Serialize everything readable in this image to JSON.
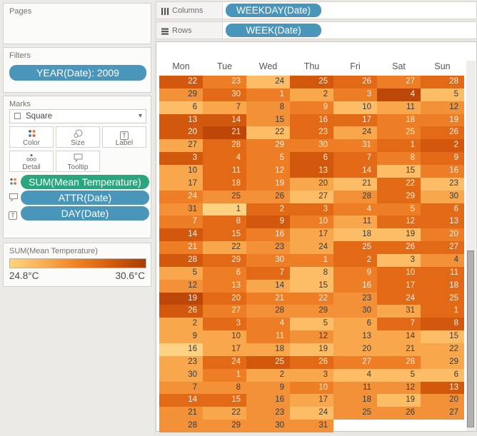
{
  "left_panel": {
    "pages_label": "Pages",
    "filters_label": "Filters",
    "filter_pill": "YEAR(Date): 2009",
    "marks": {
      "label": "Marks",
      "mark_type": "Square",
      "dropdown_caret": "▾",
      "buttons": [
        {
          "label": "Color"
        },
        {
          "label": "Size"
        },
        {
          "label": "Label"
        },
        {
          "label": "Detail"
        },
        {
          "label": "Tooltip"
        }
      ],
      "pills": [
        {
          "label": "SUM(Mean Temperature)",
          "color": "#2ba57c",
          "icon": "color-dots-icon"
        },
        {
          "label": "ATTR(Date)",
          "color": "#4a96ba",
          "icon": "tooltip-icon"
        },
        {
          "label": "DAY(Date)",
          "color": "#4a96ba",
          "icon": "label-t-icon"
        }
      ]
    },
    "legend": {
      "title": "SUM(Mean Temperature)"
    }
  },
  "shelves": {
    "columns_label": "Columns",
    "columns_pill": "WEEKDAY(Date)",
    "rows_label": "Rows",
    "rows_pill": "WEEK(Date)"
  },
  "chart_data": {
    "type": "heatmap",
    "columns": [
      "Mon",
      "Tue",
      "Wed",
      "Thu",
      "Fri",
      "Sat",
      "Sun"
    ],
    "color_scale": {
      "min_label": "24.8°C",
      "max_label": "30.6°C",
      "palette": [
        "#fdd283",
        "#fcbd66",
        "#f9a74d",
        "#f29138",
        "#ee7e26",
        "#e26a16",
        "#d2580e",
        "#bc4708"
      ],
      "dark_text": "#3a3a3a",
      "light_text": "#fbeedd"
    },
    "rows": [
      [
        [
          22,
          6
        ],
        [
          23,
          4
        ],
        [
          24,
          1
        ],
        [
          25,
          6
        ],
        [
          26,
          5
        ],
        [
          27,
          4
        ],
        [
          28,
          5
        ]
      ],
      [
        [
          29,
          3
        ],
        [
          30,
          5
        ],
        [
          1,
          4
        ],
        [
          2,
          2
        ],
        [
          3,
          4
        ],
        [
          4,
          7
        ],
        [
          5,
          1
        ]
      ],
      [
        [
          6,
          1
        ],
        [
          7,
          2
        ],
        [
          8,
          3
        ],
        [
          9,
          4
        ],
        [
          10,
          1
        ],
        [
          11,
          2
        ],
        [
          12,
          3
        ]
      ],
      [
        [
          13,
          6
        ],
        [
          14,
          6
        ],
        [
          15,
          3
        ],
        [
          16,
          5
        ],
        [
          17,
          5
        ],
        [
          18,
          4
        ],
        [
          19,
          4
        ]
      ],
      [
        [
          20,
          6
        ],
        [
          21,
          7
        ],
        [
          22,
          1
        ],
        [
          23,
          5
        ],
        [
          24,
          2
        ],
        [
          25,
          4
        ],
        [
          26,
          5
        ]
      ],
      [
        [
          27,
          2
        ],
        [
          28,
          5
        ],
        [
          29,
          4
        ],
        [
          30,
          4
        ],
        [
          31,
          4
        ],
        [
          1,
          5
        ],
        [
          2,
          6
        ]
      ],
      [
        [
          3,
          6
        ],
        [
          4,
          5
        ],
        [
          5,
          4
        ],
        [
          6,
          6
        ],
        [
          7,
          5
        ],
        [
          8,
          4
        ],
        [
          9,
          5
        ]
      ],
      [
        [
          10,
          2
        ],
        [
          11,
          5
        ],
        [
          12,
          4
        ],
        [
          13,
          6
        ],
        [
          14,
          5
        ],
        [
          15,
          1
        ],
        [
          16,
          4
        ]
      ],
      [
        [
          17,
          2
        ],
        [
          18,
          5
        ],
        [
          19,
          4
        ],
        [
          20,
          2
        ],
        [
          21,
          1
        ],
        [
          22,
          5
        ],
        [
          23,
          1
        ]
      ],
      [
        [
          24,
          4
        ],
        [
          25,
          3
        ],
        [
          26,
          3
        ],
        [
          27,
          1
        ],
        [
          28,
          3
        ],
        [
          29,
          5
        ],
        [
          30,
          2
        ]
      ],
      [
        [
          31,
          3
        ],
        [
          1,
          0
        ],
        [
          2,
          5
        ],
        [
          3,
          5
        ],
        [
          4,
          4
        ],
        [
          5,
          4
        ],
        [
          6,
          5
        ]
      ],
      [
        [
          7,
          4
        ],
        [
          8,
          5
        ],
        [
          9,
          6
        ],
        [
          10,
          4
        ],
        [
          11,
          2
        ],
        [
          12,
          5
        ],
        [
          13,
          5
        ]
      ],
      [
        [
          14,
          6
        ],
        [
          15,
          5
        ],
        [
          16,
          4
        ],
        [
          17,
          2
        ],
        [
          18,
          1
        ],
        [
          19,
          1
        ],
        [
          20,
          4
        ]
      ],
      [
        [
          21,
          4
        ],
        [
          22,
          2
        ],
        [
          23,
          3
        ],
        [
          24,
          2
        ],
        [
          25,
          5
        ],
        [
          26,
          5
        ],
        [
          27,
          5
        ]
      ],
      [
        [
          28,
          6
        ],
        [
          29,
          5
        ],
        [
          30,
          4
        ],
        [
          1,
          4
        ],
        [
          2,
          5
        ],
        [
          3,
          1
        ],
        [
          4,
          3
        ]
      ],
      [
        [
          5,
          2
        ],
        [
          6,
          4
        ],
        [
          7,
          5
        ],
        [
          8,
          1
        ],
        [
          9,
          4
        ],
        [
          10,
          5
        ],
        [
          11,
          5
        ]
      ],
      [
        [
          12,
          3
        ],
        [
          13,
          4
        ],
        [
          14,
          2
        ],
        [
          15,
          1
        ],
        [
          16,
          4
        ],
        [
          17,
          5
        ],
        [
          18,
          5
        ]
      ],
      [
        [
          19,
          7
        ],
        [
          20,
          5
        ],
        [
          21,
          4
        ],
        [
          22,
          4
        ],
        [
          23,
          3
        ],
        [
          24,
          5
        ],
        [
          25,
          5
        ]
      ],
      [
        [
          26,
          6
        ],
        [
          27,
          4
        ],
        [
          28,
          3
        ],
        [
          29,
          3
        ],
        [
          30,
          3
        ],
        [
          31,
          2
        ],
        [
          1,
          5
        ]
      ],
      [
        [
          2,
          2
        ],
        [
          3,
          5
        ],
        [
          4,
          4
        ],
        [
          5,
          1
        ],
        [
          6,
          2
        ],
        [
          7,
          5
        ],
        [
          8,
          6
        ]
      ],
      [
        [
          9,
          2
        ],
        [
          10,
          2
        ],
        [
          11,
          4
        ],
        [
          12,
          3
        ],
        [
          13,
          2
        ],
        [
          14,
          2
        ],
        [
          15,
          1
        ]
      ],
      [
        [
          16,
          0
        ],
        [
          17,
          2
        ],
        [
          18,
          2
        ],
        [
          19,
          1
        ],
        [
          20,
          2
        ],
        [
          21,
          2
        ],
        [
          22,
          2
        ]
      ],
      [
        [
          23,
          2
        ],
        [
          24,
          5
        ],
        [
          25,
          6
        ],
        [
          26,
          5
        ],
        [
          27,
          4
        ],
        [
          28,
          4
        ],
        [
          29,
          2
        ]
      ],
      [
        [
          30,
          2
        ],
        [
          1,
          4
        ],
        [
          2,
          2
        ],
        [
          3,
          2
        ],
        [
          4,
          1
        ],
        [
          5,
          1
        ],
        [
          6,
          1
        ]
      ],
      [
        [
          7,
          3
        ],
        [
          8,
          3
        ],
        [
          9,
          3
        ],
        [
          10,
          4
        ],
        [
          11,
          3
        ],
        [
          12,
          3
        ],
        [
          13,
          6
        ]
      ],
      [
        [
          14,
          5
        ],
        [
          15,
          5
        ],
        [
          16,
          3
        ],
        [
          17,
          2
        ],
        [
          18,
          3
        ],
        [
          19,
          1
        ],
        [
          20,
          3
        ]
      ],
      [
        [
          21,
          3
        ],
        [
          22,
          2
        ],
        [
          23,
          3
        ],
        [
          24,
          1
        ],
        [
          25,
          3
        ],
        [
          26,
          3
        ],
        [
          27,
          3
        ]
      ],
      [
        [
          28,
          3
        ],
        [
          29,
          3
        ],
        [
          30,
          3
        ],
        [
          31,
          3
        ],
        null,
        null,
        null
      ]
    ]
  }
}
